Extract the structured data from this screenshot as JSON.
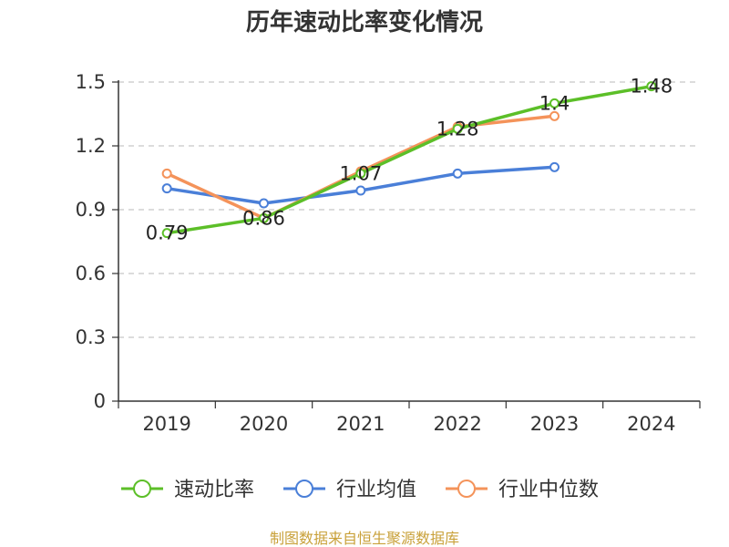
{
  "chart_data": {
    "type": "line",
    "title": "历年速动比率变化情况",
    "categories": [
      "2019",
      "2020",
      "2021",
      "2022",
      "2023",
      "2024"
    ],
    "yticks": [
      "0",
      "0.3",
      "0.6",
      "0.9",
      "1.2",
      "1.5"
    ],
    "ylim": [
      0,
      1.5
    ],
    "grid": true,
    "legend_position": "bottom",
    "series": [
      {
        "name": "速动比率",
        "color": "#5cbf28",
        "values": [
          0.79,
          0.86,
          1.07,
          1.28,
          1.4,
          1.48
        ],
        "labels": [
          "0.79",
          "0.86",
          "1.07",
          "1.28",
          "1.4",
          "1.48"
        ]
      },
      {
        "name": "行业均值",
        "color": "#4a7fd8",
        "values": [
          1.0,
          0.93,
          0.99,
          1.07,
          1.1,
          null
        ]
      },
      {
        "name": "行业中位数",
        "color": "#f4935a",
        "values": [
          1.07,
          0.86,
          1.08,
          1.29,
          1.34,
          null
        ]
      }
    ],
    "source": "制图数据来自恒生聚源数据库"
  }
}
